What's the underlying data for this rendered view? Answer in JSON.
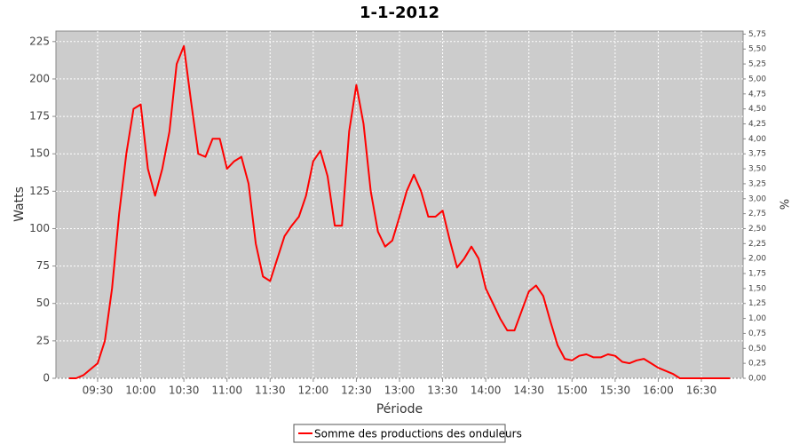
{
  "chart_data": {
    "type": "line",
    "title": "1-1-2012",
    "x_label": "Période",
    "y_label": "Watts",
    "y2_label": "%",
    "x": [
      "09:10",
      "09:15",
      "09:20",
      "09:25",
      "09:30",
      "09:35",
      "09:40",
      "09:45",
      "09:50",
      "09:55",
      "10:00",
      "10:05",
      "10:10",
      "10:15",
      "10:20",
      "10:25",
      "10:30",
      "10:35",
      "10:40",
      "10:45",
      "10:50",
      "10:55",
      "11:00",
      "11:05",
      "11:10",
      "11:15",
      "11:20",
      "11:25",
      "11:30",
      "11:35",
      "11:40",
      "11:45",
      "11:50",
      "11:55",
      "12:00",
      "12:05",
      "12:10",
      "12:15",
      "12:20",
      "12:25",
      "12:30",
      "12:35",
      "12:40",
      "12:45",
      "12:50",
      "12:55",
      "13:00",
      "13:05",
      "13:10",
      "13:15",
      "13:20",
      "13:25",
      "13:30",
      "13:35",
      "13:40",
      "13:45",
      "13:50",
      "13:55",
      "14:00",
      "14:05",
      "14:10",
      "14:15",
      "14:20",
      "14:25",
      "14:30",
      "14:35",
      "14:40",
      "14:45",
      "14:50",
      "14:55",
      "15:00",
      "15:05",
      "15:10",
      "15:15",
      "15:20",
      "15:25",
      "15:30",
      "15:35",
      "15:40",
      "15:45",
      "15:50",
      "15:55",
      "16:00",
      "16:05",
      "16:10",
      "16:15",
      "16:20",
      "16:25",
      "16:30",
      "16:35",
      "16:40",
      "16:45",
      "16:50"
    ],
    "series": [
      {
        "name": "Somme des productions des onduleurs",
        "color": "#ff0000",
        "values": [
          0,
          0,
          2,
          6,
          10,
          25,
          60,
          110,
          150,
          180,
          183,
          140,
          122,
          140,
          165,
          210,
          222,
          185,
          150,
          148,
          160,
          160,
          140,
          145,
          148,
          130,
          90,
          68,
          65,
          80,
          95,
          102,
          108,
          122,
          145,
          152,
          135,
          102,
          102,
          165,
          196,
          170,
          125,
          98,
          88,
          92,
          108,
          125,
          136,
          125,
          108,
          108,
          112,
          92,
          74,
          80,
          88,
          80,
          60,
          50,
          40,
          32,
          32,
          45,
          58,
          62,
          55,
          38,
          22,
          13,
          12,
          15,
          16,
          14,
          14,
          16,
          15,
          11,
          10,
          12,
          13,
          10,
          7,
          5,
          3,
          0,
          0,
          0,
          0,
          0,
          0,
          0,
          0
        ]
      }
    ],
    "xlim": [
      "09:01",
      "16:59"
    ],
    "xticks": [
      "09:30",
      "10:00",
      "10:30",
      "11:00",
      "11:30",
      "12:00",
      "12:30",
      "13:00",
      "13:30",
      "14:00",
      "14:30",
      "15:00",
      "15:30",
      "16:00",
      "16:30"
    ],
    "ylim": [
      0,
      232
    ],
    "yticks": [
      0,
      25,
      50,
      75,
      100,
      125,
      150,
      175,
      200,
      225
    ],
    "y2lim": [
      0,
      5.8
    ],
    "y2ticks": [
      {
        "value": 0,
        "label": "0,00"
      },
      {
        "value": 0.25,
        "label": "0,25"
      },
      {
        "value": 0.5,
        "label": "0,50"
      },
      {
        "value": 0.75,
        "label": "0,75"
      },
      {
        "value": 1,
        "label": "1,00"
      },
      {
        "value": 1.25,
        "label": "1,25"
      },
      {
        "value": 1.5,
        "label": "1,50"
      },
      {
        "value": 1.75,
        "label": "1,75"
      },
      {
        "value": 2,
        "label": "2,00"
      },
      {
        "value": 2.25,
        "label": "2,25"
      },
      {
        "value": 2.5,
        "label": "2,50"
      },
      {
        "value": 2.75,
        "label": "2,75"
      },
      {
        "value": 3,
        "label": "3,00"
      },
      {
        "value": 3.25,
        "label": "3,25"
      },
      {
        "value": 3.5,
        "label": "3,50"
      },
      {
        "value": 3.75,
        "label": "3,75"
      },
      {
        "value": 4,
        "label": "4,00"
      },
      {
        "value": 4.25,
        "label": "4,25"
      },
      {
        "value": 4.5,
        "label": "4,50"
      },
      {
        "value": 4.75,
        "label": "4,75"
      },
      {
        "value": 5,
        "label": "5,00"
      },
      {
        "value": 5.25,
        "label": "5,25"
      },
      {
        "value": 5.5,
        "label": "5,50"
      },
      {
        "value": 5.75,
        "label": "5,75"
      }
    ],
    "grid": true,
    "legend": "bottom"
  }
}
